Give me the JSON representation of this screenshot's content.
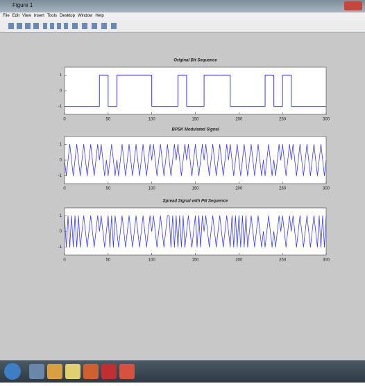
{
  "window": {
    "title": "Figure 1",
    "menu": [
      "File",
      "Edit",
      "View",
      "Insert",
      "Tools",
      "Desktop",
      "Window",
      "Help"
    ]
  },
  "chart_data": [
    {
      "type": "step",
      "title": "Original Bit Sequence",
      "color": "#3a3aff",
      "x": [
        0,
        10,
        20,
        30,
        40,
        50,
        60,
        70,
        80,
        90,
        100,
        110,
        120,
        130,
        140,
        150,
        160,
        170,
        180,
        190,
        200,
        210,
        220,
        230,
        240,
        250,
        260,
        270,
        280,
        290
      ],
      "values": [
        -1,
        -1,
        -1,
        -1,
        1,
        -1,
        1,
        1,
        1,
        1,
        -1,
        -1,
        -1,
        1,
        -1,
        -1,
        1,
        1,
        1,
        -1,
        -1,
        -1,
        -1,
        1,
        -1,
        1,
        -1,
        -1,
        -1,
        -1
      ],
      "xlim": [
        0,
        300
      ],
      "xticks": [
        0,
        50,
        100,
        150,
        200,
        250,
        300
      ],
      "ylim": [
        -1.5,
        1.5
      ],
      "yticks": [
        -1,
        0,
        1
      ]
    },
    {
      "type": "line",
      "title": "BPSK Modulated Signal",
      "color": "#3a3aff",
      "x": [
        0,
        2,
        4,
        6,
        8,
        10,
        12,
        14,
        16,
        18,
        20,
        22,
        24,
        26,
        28,
        30,
        32,
        34,
        36,
        38,
        40,
        42,
        44,
        46,
        48,
        50,
        52,
        54,
        56,
        58,
        60,
        62,
        64,
        66,
        68,
        70,
        72,
        74,
        76,
        78,
        80,
        82,
        84,
        86,
        88,
        90,
        92,
        94,
        96,
        98,
        100,
        102,
        104,
        106,
        108,
        110,
        112,
        114,
        116,
        118,
        120,
        122,
        124,
        126,
        128,
        130,
        132,
        134,
        136,
        138,
        140,
        142,
        144,
        146,
        148,
        150,
        152,
        154,
        156,
        158,
        160,
        162,
        164,
        166,
        168,
        170,
        172,
        174,
        176,
        178,
        180,
        182,
        184,
        186,
        188,
        190,
        192,
        194,
        196,
        198,
        200,
        202,
        204,
        206,
        208,
        210,
        212,
        214,
        216,
        218,
        220,
        222,
        224,
        226,
        228,
        230,
        232,
        234,
        236,
        238,
        240,
        242,
        244,
        246,
        248,
        250,
        252,
        254,
        256,
        258,
        260,
        262,
        264,
        266,
        268,
        270,
        272,
        274,
        276,
        278,
        280,
        282,
        284,
        286,
        288,
        290,
        292,
        294,
        296,
        298,
        300
      ],
      "values": [
        0,
        -1,
        0,
        1,
        0,
        -1,
        0,
        1,
        0,
        -1,
        0,
        1,
        0,
        -1,
        0,
        1,
        0,
        -1,
        0,
        1,
        0,
        1,
        0,
        -1,
        0,
        -1,
        0,
        1,
        0,
        -1,
        0,
        -1,
        0,
        1,
        0,
        -1,
        0,
        1,
        0,
        -1,
        0,
        1,
        0,
        -1,
        0,
        1,
        0,
        -1,
        0,
        1,
        0,
        1,
        0,
        -1,
        0,
        1,
        0,
        -1,
        0,
        1,
        0,
        -1,
        0,
        1,
        0,
        1,
        0,
        -1,
        0,
        1,
        0,
        1,
        0,
        -1,
        0,
        1,
        0,
        -1,
        0,
        1,
        0,
        1,
        0,
        -1,
        0,
        1,
        0,
        -1,
        0,
        1,
        0,
        -1,
        0,
        1,
        0,
        1,
        0,
        -1,
        0,
        1,
        0,
        -1,
        0,
        1,
        0,
        -1,
        0,
        1,
        0,
        -1,
        0,
        1,
        0,
        -1,
        0,
        -1,
        0,
        1,
        0,
        -1,
        0,
        -1,
        0,
        1,
        0,
        1,
        0,
        -1,
        0,
        1,
        0,
        1,
        0,
        -1,
        0,
        1,
        0,
        -1,
        0,
        1,
        0,
        -1,
        0,
        1,
        0,
        -1,
        0,
        1,
        0,
        -1,
        0
      ],
      "xlim": [
        0,
        300
      ],
      "xticks": [
        0,
        50,
        100,
        150,
        200,
        250,
        300
      ],
      "ylim": [
        -1.5,
        1.5
      ],
      "yticks": [
        -1,
        0,
        1
      ]
    },
    {
      "type": "line",
      "title": "Spread Signal with PN Sequence",
      "color": "#3a3aff",
      "x": [
        0,
        2,
        4,
        6,
        8,
        10,
        12,
        14,
        16,
        18,
        20,
        22,
        24,
        26,
        28,
        30,
        32,
        34,
        36,
        38,
        40,
        42,
        44,
        46,
        48,
        50,
        52,
        54,
        56,
        58,
        60,
        62,
        64,
        66,
        68,
        70,
        72,
        74,
        76,
        78,
        80,
        82,
        84,
        86,
        88,
        90,
        92,
        94,
        96,
        98,
        100,
        102,
        104,
        106,
        108,
        110,
        112,
        114,
        116,
        118,
        120,
        122,
        124,
        126,
        128,
        130,
        132,
        134,
        136,
        138,
        140,
        142,
        144,
        146,
        148,
        150,
        152,
        154,
        156,
        158,
        160,
        162,
        164,
        166,
        168,
        170,
        172,
        174,
        176,
        178,
        180,
        182,
        184,
        186,
        188,
        190,
        192,
        194,
        196,
        198,
        200,
        202,
        204,
        206,
        208,
        210,
        212,
        214,
        216,
        218,
        220,
        222,
        224,
        226,
        228,
        230,
        232,
        234,
        236,
        238,
        240,
        242,
        244,
        246,
        248,
        250,
        252,
        254,
        256,
        258,
        260,
        262,
        264,
        266,
        268,
        270,
        272,
        274,
        276,
        278,
        280,
        282,
        284,
        286,
        288,
        290,
        292,
        294,
        296,
        298,
        300
      ],
      "values": [
        1,
        -1,
        1,
        -1,
        1,
        -1,
        1,
        -1,
        1,
        -1,
        0,
        1,
        0,
        -1,
        0,
        1,
        0,
        -1,
        0,
        1,
        0,
        1,
        0,
        -1,
        0,
        1,
        -1,
        1,
        -1,
        1,
        0,
        -1,
        0,
        1,
        0,
        -1,
        0,
        1,
        0,
        -1,
        0,
        1,
        0,
        -1,
        0,
        1,
        0,
        -1,
        0,
        1,
        0,
        1,
        0,
        -1,
        0,
        1,
        0,
        -1,
        0,
        1,
        1,
        -1,
        1,
        -1,
        1,
        -1,
        1,
        -1,
        1,
        -1,
        0,
        1,
        0,
        -1,
        0,
        1,
        -1,
        1,
        -1,
        1,
        0,
        1,
        0,
        -1,
        0,
        1,
        0,
        -1,
        0,
        1,
        0,
        -1,
        0,
        1,
        0,
        -1,
        1,
        -1,
        1,
        -1,
        1,
        -1,
        1,
        -1,
        1,
        -1,
        0,
        1,
        0,
        -1,
        0,
        1,
        0,
        -1,
        0,
        -1,
        0,
        1,
        0,
        -1,
        0,
        -1,
        0,
        1,
        0,
        1,
        0,
        -1,
        0,
        1,
        0,
        1,
        0,
        -1,
        0,
        1,
        0,
        -1,
        0,
        1,
        0,
        -1,
        0,
        1,
        0,
        -1,
        1,
        -1,
        1,
        -1,
        1
      ],
      "xlim": [
        0,
        300
      ],
      "xticks": [
        0,
        50,
        100,
        150,
        200,
        250,
        300
      ],
      "ylim": [
        -1.5,
        1.5
      ],
      "yticks": [
        -1,
        0,
        1
      ]
    }
  ]
}
